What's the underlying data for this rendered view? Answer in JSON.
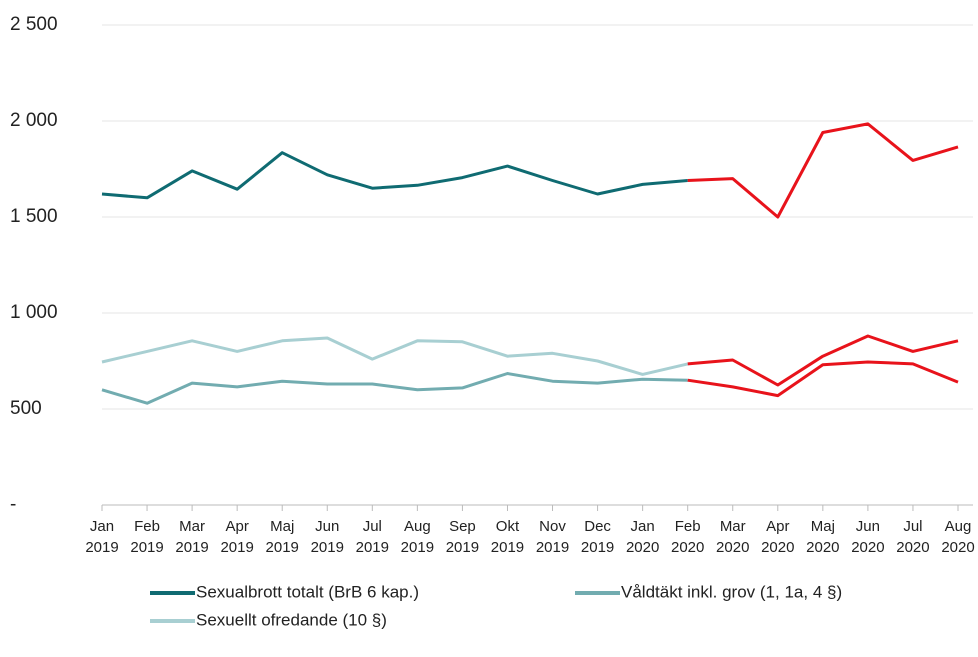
{
  "chart_data": {
    "type": "line",
    "categories": [
      "Jan 2019",
      "Feb 2019",
      "Mar 2019",
      "Apr 2019",
      "Maj 2019",
      "Jun 2019",
      "Jul 2019",
      "Aug 2019",
      "Sep 2019",
      "Okt 2019",
      "Nov 2019",
      "Dec 2019",
      "Jan 2020",
      "Feb 2020",
      "Mar 2020",
      "Apr 2020",
      "Maj 2020",
      "Jun 2020",
      "Jul 2020",
      "Aug 2020"
    ],
    "series": [
      {
        "name": "Sexualbrott totalt (BrB 6 kap.)",
        "color": "#0f6b72",
        "values": [
          1620,
          1600,
          1740,
          1645,
          1835,
          1720,
          1650,
          1665,
          1705,
          1765,
          1690,
          1620,
          1670,
          1690,
          1700,
          1500,
          1940,
          1985,
          1795,
          1865
        ]
      },
      {
        "name": "Våldtäkt inkl. grov (1, 1a, 4 §)",
        "color": "#72acb0",
        "values": [
          600,
          530,
          635,
          615,
          645,
          630,
          630,
          600,
          610,
          685,
          645,
          635,
          655,
          650,
          615,
          570,
          730,
          745,
          735,
          640
        ]
      },
      {
        "name": "Sexuellt ofredande (10 §)",
        "color": "#a8cfd2",
        "values": [
          745,
          800,
          855,
          800,
          855,
          870,
          760,
          855,
          850,
          775,
          790,
          750,
          680,
          735,
          755,
          625,
          775,
          880,
          800,
          855
        ]
      }
    ],
    "highlight_from": "Feb 2020",
    "highlight_color": "#e8131b",
    "ylim": [
      0,
      2500
    ],
    "yticks": [
      {
        "value": 0,
        "label": "-"
      },
      500,
      {
        "value": 1000,
        "label": "1 000"
      },
      {
        "value": 1500,
        "label": "1 500"
      },
      {
        "value": 2000,
        "label": "2 000"
      },
      {
        "value": 2500,
        "label": "2 500"
      }
    ],
    "grid": true
  }
}
